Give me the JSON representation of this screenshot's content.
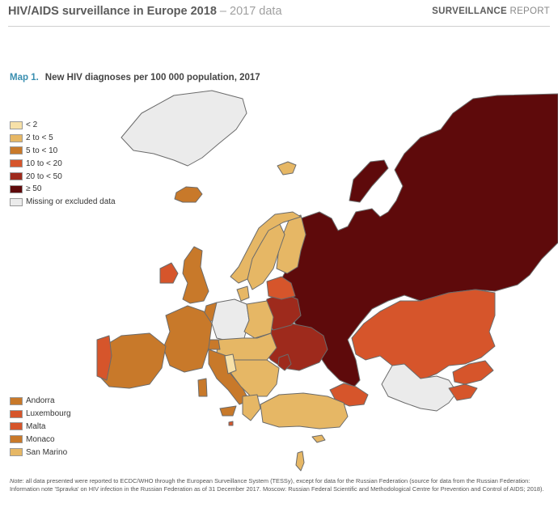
{
  "header": {
    "title": "HIV/AIDS surveillance in Europe 2018",
    "dash": " – ",
    "subtitle": "2017 data",
    "report_bold": "SURVEILLANCE",
    "report_light": " REPORT"
  },
  "map_title": {
    "label": "Map 1.",
    "text": "New HIV diagnoses per 100 000 population, 2017"
  },
  "legend": [
    {
      "label": "< 2",
      "color": "#f7e1a8"
    },
    {
      "label": "2 to < 5",
      "color": "#e6b765"
    },
    {
      "label": "5 to < 10",
      "color": "#c8792a"
    },
    {
      "label": "10 to < 20",
      "color": "#d6552b"
    },
    {
      "label": "20 to < 50",
      "color": "#9e2a1c"
    },
    {
      "label": "≥ 50",
      "color": "#5e0a0b"
    },
    {
      "label": "Missing or excluded data",
      "color": "#ebebeb"
    }
  ],
  "small_countries": [
    {
      "label": "Andorra",
      "color": "#c8792a"
    },
    {
      "label": "Luxembourg",
      "color": "#d6552b"
    },
    {
      "label": "Malta",
      "color": "#d6552b"
    },
    {
      "label": "Monaco",
      "color": "#c8792a"
    },
    {
      "label": "San Marino",
      "color": "#e6b765"
    }
  ],
  "note": {
    "lead": "Note",
    "text": ": all data presented were reported to ECDC/WHO through the European Surveillance System (TESSy), except for data for the Russian Federation (source for data from the Russian Federation: Information note 'Spravka' on HIV infection in the Russian Federation as of 31 December 2017. Moscow: Russian Federal Scientific and Methodological Centre for Prevention and Control of AIDS; 2018)."
  },
  "colors": {
    "border": "#6b6b6b"
  }
}
